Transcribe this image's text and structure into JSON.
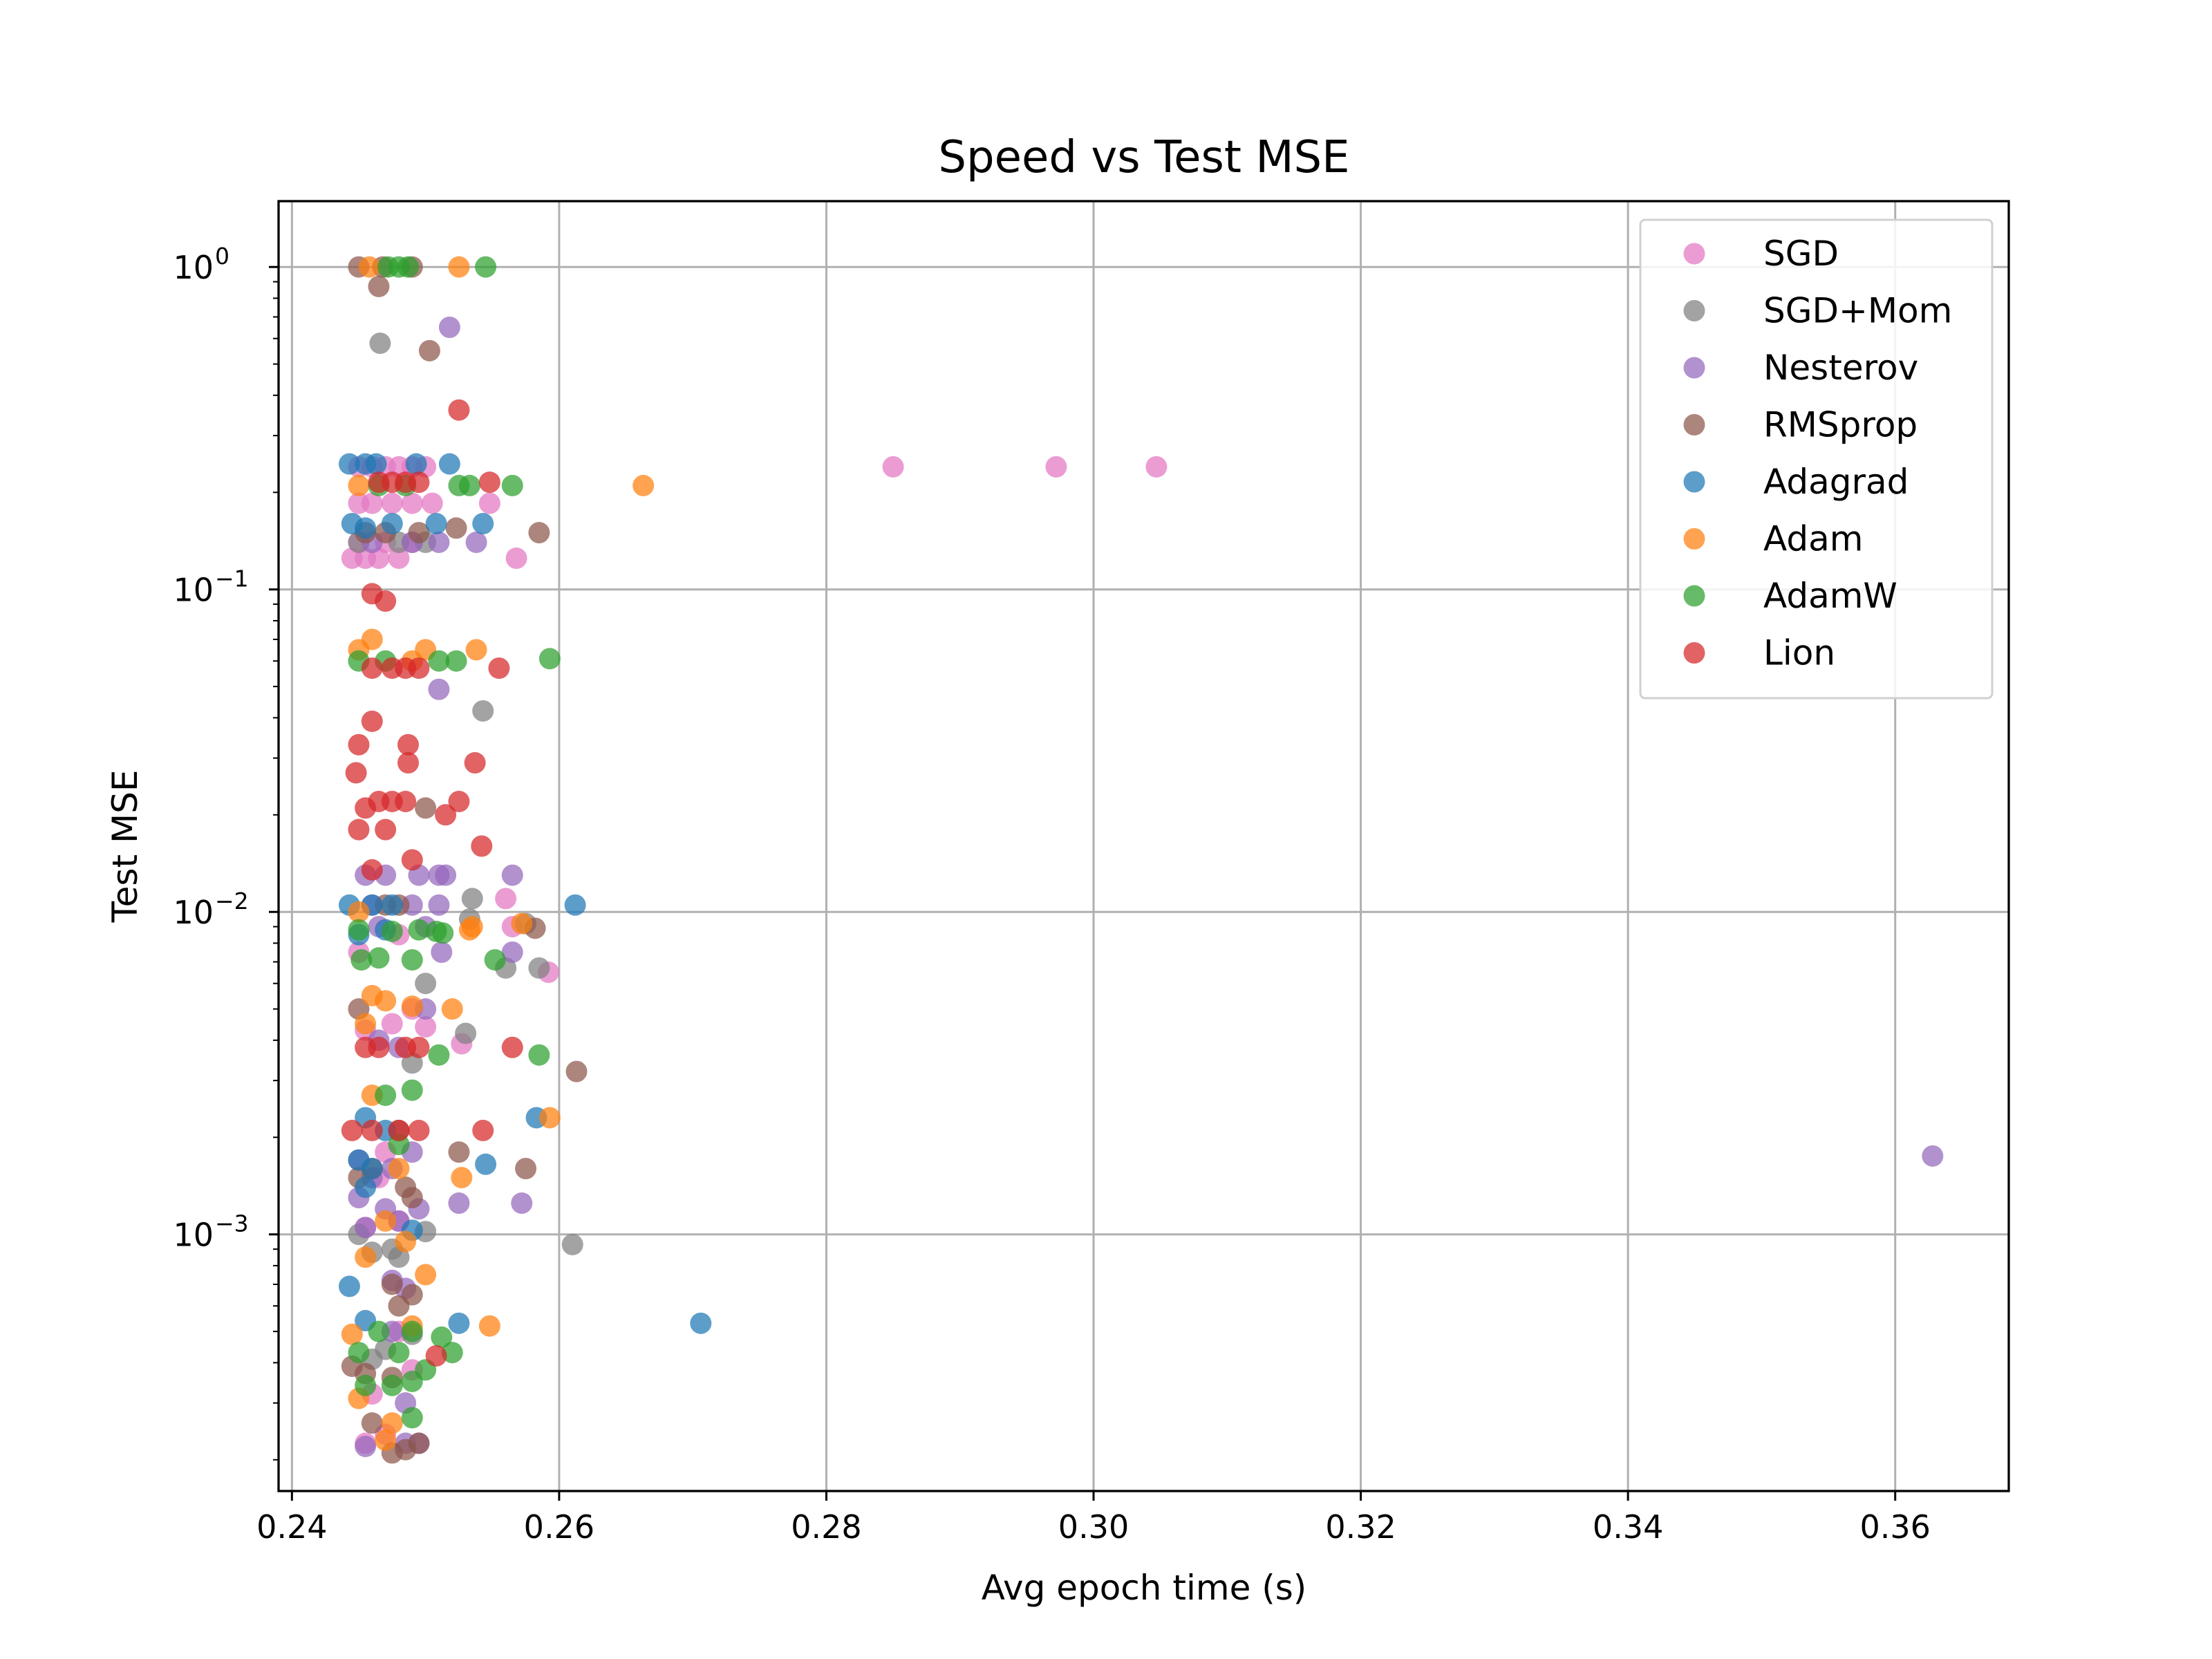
{
  "chart_data": {
    "type": "scatter",
    "title": "Speed vs Test MSE",
    "xlabel": "Avg epoch time (s)",
    "ylabel": "Test MSE",
    "xscale": "linear",
    "yscale": "log",
    "xlim": [
      0.239,
      0.3685
    ],
    "ylim": [
      0.00016,
      1.6
    ],
    "xticks": [
      {
        "value": 0.24,
        "label": "0.24"
      },
      {
        "value": 0.26,
        "label": "0.26"
      },
      {
        "value": 0.28,
        "label": "0.28"
      },
      {
        "value": 0.3,
        "label": "0.30"
      },
      {
        "value": 0.32,
        "label": "0.32"
      },
      {
        "value": 0.34,
        "label": "0.34"
      },
      {
        "value": 0.36,
        "label": "0.36"
      }
    ],
    "yticks": [
      {
        "value": 1,
        "base": "10",
        "exp": "0"
      },
      {
        "value": 0.1,
        "base": "10",
        "exp": "−1"
      },
      {
        "value": 0.01,
        "base": "10",
        "exp": "−2"
      },
      {
        "value": 0.001,
        "base": "10",
        "exp": "−3"
      }
    ],
    "grid": true,
    "legend_position": "top-right",
    "series": [
      {
        "name": "SGD",
        "color": "#e377c2",
        "points": [
          [
            0.245,
            0.24
          ],
          [
            0.246,
            0.24
          ],
          [
            0.247,
            0.24
          ],
          [
            0.248,
            0.24
          ],
          [
            0.249,
            0.24
          ],
          [
            0.25,
            0.24
          ],
          [
            0.245,
            0.185
          ],
          [
            0.246,
            0.185
          ],
          [
            0.2475,
            0.185
          ],
          [
            0.249,
            0.185
          ],
          [
            0.2505,
            0.185
          ],
          [
            0.2548,
            0.185
          ],
          [
            0.2445,
            0.125
          ],
          [
            0.2455,
            0.125
          ],
          [
            0.2465,
            0.125
          ],
          [
            0.248,
            0.125
          ],
          [
            0.2568,
            0.125
          ],
          [
            0.245,
            0.14
          ],
          [
            0.247,
            0.14
          ],
          [
            0.249,
            0.14
          ],
          [
            0.285,
            0.24
          ],
          [
            0.2972,
            0.24
          ],
          [
            0.3047,
            0.24
          ],
          [
            0.256,
            0.011
          ],
          [
            0.2565,
            0.009
          ],
          [
            0.2592,
            0.0065
          ],
          [
            0.245,
            0.0075
          ],
          [
            0.248,
            0.0085
          ],
          [
            0.2475,
            0.0045
          ],
          [
            0.25,
            0.0044
          ],
          [
            0.2527,
            0.0039
          ],
          [
            0.2455,
            0.0043
          ],
          [
            0.249,
            0.005
          ],
          [
            0.247,
            0.0018
          ],
          [
            0.2465,
            0.0015
          ],
          [
            0.248,
            0.0011
          ],
          [
            0.2455,
            0.00105
          ],
          [
            0.248,
            0.0005
          ],
          [
            0.249,
            0.00038
          ],
          [
            0.246,
            0.00032
          ],
          [
            0.2455,
            0.000225
          ],
          [
            0.247,
            0.00024
          ]
        ]
      },
      {
        "name": "SGD+Mom",
        "color": "#7f7f7f",
        "points": [
          [
            0.2466,
            0.58
          ],
          [
            0.245,
            0.14
          ],
          [
            0.248,
            0.14
          ],
          [
            0.25,
            0.14
          ],
          [
            0.2543,
            0.042
          ],
          [
            0.2535,
            0.011
          ],
          [
            0.2533,
            0.0095
          ],
          [
            0.2575,
            0.0092
          ],
          [
            0.2585,
            0.0067
          ],
          [
            0.256,
            0.0067
          ],
          [
            0.25,
            0.006
          ],
          [
            0.253,
            0.0042
          ],
          [
            0.249,
            0.0034
          ],
          [
            0.245,
            0.001
          ],
          [
            0.2475,
            0.0009
          ],
          [
            0.25,
            0.00102
          ],
          [
            0.246,
            0.00088
          ],
          [
            0.248,
            0.00085
          ],
          [
            0.261,
            0.00093
          ],
          [
            0.247,
            0.00044
          ],
          [
            0.249,
            0.00049
          ],
          [
            0.246,
            0.00041
          ]
        ]
      },
      {
        "name": "Nesterov",
        "color": "#9467bd",
        "points": [
          [
            0.2518,
            0.65
          ],
          [
            0.249,
            0.14
          ],
          [
            0.251,
            0.14
          ],
          [
            0.2538,
            0.14
          ],
          [
            0.246,
            0.14
          ],
          [
            0.251,
            0.049
          ],
          [
            0.2455,
            0.013
          ],
          [
            0.247,
            0.013
          ],
          [
            0.2495,
            0.013
          ],
          [
            0.251,
            0.013
          ],
          [
            0.2515,
            0.013
          ],
          [
            0.2565,
            0.013
          ],
          [
            0.246,
            0.0105
          ],
          [
            0.249,
            0.0105
          ],
          [
            0.251,
            0.0105
          ],
          [
            0.2465,
            0.009
          ],
          [
            0.25,
            0.009
          ],
          [
            0.2512,
            0.0075
          ],
          [
            0.2565,
            0.0075
          ],
          [
            0.25,
            0.005
          ],
          [
            0.2465,
            0.004
          ],
          [
            0.248,
            0.0038
          ],
          [
            0.245,
            0.0017
          ],
          [
            0.246,
            0.0015
          ],
          [
            0.2475,
            0.0016
          ],
          [
            0.249,
            0.0018
          ],
          [
            0.245,
            0.0013
          ],
          [
            0.247,
            0.0012
          ],
          [
            0.248,
            0.0011
          ],
          [
            0.2495,
            0.0012
          ],
          [
            0.2525,
            0.00125
          ],
          [
            0.2572,
            0.00125
          ],
          [
            0.2455,
            0.00105
          ],
          [
            0.2475,
            0.00072
          ],
          [
            0.2485,
            0.00068
          ],
          [
            0.2475,
            0.0005
          ],
          [
            0.2485,
            0.0003
          ],
          [
            0.2455,
            0.00022
          ],
          [
            0.2485,
            0.000225
          ],
          [
            0.2495,
            0.000225
          ],
          [
            0.3628,
            0.00175
          ]
        ]
      },
      {
        "name": "RMSprop",
        "color": "#8c564b",
        "points": [
          [
            0.245,
            1.0
          ],
          [
            0.2468,
            1.0
          ],
          [
            0.249,
            1.0
          ],
          [
            0.2465,
            0.87
          ],
          [
            0.2503,
            0.55
          ],
          [
            0.2455,
            0.15
          ],
          [
            0.247,
            0.15
          ],
          [
            0.2495,
            0.15
          ],
          [
            0.2523,
            0.155
          ],
          [
            0.2585,
            0.15
          ],
          [
            0.25,
            0.021
          ],
          [
            0.247,
            0.0105
          ],
          [
            0.248,
            0.0105
          ],
          [
            0.2582,
            0.0089
          ],
          [
            0.245,
            0.005
          ],
          [
            0.2613,
            0.0032
          ],
          [
            0.245,
            0.0015
          ],
          [
            0.2485,
            0.0014
          ],
          [
            0.249,
            0.0013
          ],
          [
            0.2525,
            0.0018
          ],
          [
            0.2575,
            0.0016
          ],
          [
            0.248,
            0.0021
          ],
          [
            0.246,
            0.0016
          ],
          [
            0.2475,
            0.0007
          ],
          [
            0.249,
            0.00065
          ],
          [
            0.248,
            0.0006
          ],
          [
            0.2445,
            0.00039
          ],
          [
            0.2455,
            0.00037
          ],
          [
            0.2475,
            0.00036
          ],
          [
            0.246,
            0.00026
          ],
          [
            0.2475,
            0.00021
          ],
          [
            0.2485,
            0.000215
          ],
          [
            0.2495,
            0.000225
          ]
        ]
      },
      {
        "name": "Adagrad",
        "color": "#1f77b4",
        "points": [
          [
            0.2443,
            0.245
          ],
          [
            0.2455,
            0.245
          ],
          [
            0.2463,
            0.245
          ],
          [
            0.2493,
            0.245
          ],
          [
            0.2518,
            0.245
          ],
          [
            0.2445,
            0.16
          ],
          [
            0.2455,
            0.155
          ],
          [
            0.2475,
            0.16
          ],
          [
            0.2508,
            0.16
          ],
          [
            0.2543,
            0.16
          ],
          [
            0.2443,
            0.0105
          ],
          [
            0.246,
            0.0105
          ],
          [
            0.2475,
            0.0105
          ],
          [
            0.2612,
            0.0105
          ],
          [
            0.245,
            0.0085
          ],
          [
            0.247,
            0.0088
          ],
          [
            0.2455,
            0.0023
          ],
          [
            0.247,
            0.0021
          ],
          [
            0.2583,
            0.0023
          ],
          [
            0.245,
            0.0017
          ],
          [
            0.246,
            0.0016
          ],
          [
            0.2545,
            0.00165
          ],
          [
            0.2455,
            0.0014
          ],
          [
            0.249,
            0.00103
          ],
          [
            0.2443,
            0.00069
          ],
          [
            0.2455,
            0.00054
          ],
          [
            0.2525,
            0.00053
          ],
          [
            0.2706,
            0.00053
          ]
        ]
      },
      {
        "name": "Adam",
        "color": "#ff7f0e",
        "points": [
          [
            0.2458,
            1.0
          ],
          [
            0.2525,
            1.0
          ],
          [
            0.245,
            0.21
          ],
          [
            0.2663,
            0.21
          ],
          [
            0.246,
            0.07
          ],
          [
            0.245,
            0.065
          ],
          [
            0.25,
            0.065
          ],
          [
            0.2538,
            0.065
          ],
          [
            0.249,
            0.06
          ],
          [
            0.245,
            0.01
          ],
          [
            0.2535,
            0.009
          ],
          [
            0.2533,
            0.0088
          ],
          [
            0.2572,
            0.0092
          ],
          [
            0.246,
            0.0055
          ],
          [
            0.247,
            0.0053
          ],
          [
            0.249,
            0.0051
          ],
          [
            0.252,
            0.005
          ],
          [
            0.2455,
            0.0045
          ],
          [
            0.246,
            0.0027
          ],
          [
            0.2593,
            0.0023
          ],
          [
            0.248,
            0.0016
          ],
          [
            0.2527,
            0.0015
          ],
          [
            0.247,
            0.0011
          ],
          [
            0.2485,
            0.00095
          ],
          [
            0.2455,
            0.00085
          ],
          [
            0.25,
            0.00075
          ],
          [
            0.249,
            0.00052
          ],
          [
            0.2548,
            0.00052
          ],
          [
            0.2445,
            0.00049
          ],
          [
            0.245,
            0.00031
          ],
          [
            0.2475,
            0.00026
          ],
          [
            0.247,
            0.00023
          ]
        ]
      },
      {
        "name": "AdamW",
        "color": "#2ca02c",
        "points": [
          [
            0.2472,
            1.0
          ],
          [
            0.248,
            1.0
          ],
          [
            0.2487,
            1.0
          ],
          [
            0.2545,
            1.0
          ],
          [
            0.2465,
            0.21
          ],
          [
            0.2485,
            0.21
          ],
          [
            0.2525,
            0.21
          ],
          [
            0.2533,
            0.21
          ],
          [
            0.2565,
            0.21
          ],
          [
            0.245,
            0.06
          ],
          [
            0.247,
            0.06
          ],
          [
            0.251,
            0.06
          ],
          [
            0.2523,
            0.06
          ],
          [
            0.2593,
            0.061
          ],
          [
            0.245,
            0.0088
          ],
          [
            0.2475,
            0.0087
          ],
          [
            0.2495,
            0.0088
          ],
          [
            0.2508,
            0.0087
          ],
          [
            0.2513,
            0.0086
          ],
          [
            0.2452,
            0.0071
          ],
          [
            0.2465,
            0.0072
          ],
          [
            0.249,
            0.0071
          ],
          [
            0.2552,
            0.0071
          ],
          [
            0.251,
            0.0036
          ],
          [
            0.2585,
            0.0036
          ],
          [
            0.247,
            0.0027
          ],
          [
            0.249,
            0.0028
          ],
          [
            0.248,
            0.0019
          ],
          [
            0.2465,
            0.0005
          ],
          [
            0.249,
            0.0005
          ],
          [
            0.2512,
            0.00048
          ],
          [
            0.245,
            0.00043
          ],
          [
            0.248,
            0.00043
          ],
          [
            0.252,
            0.00043
          ],
          [
            0.2455,
            0.00034
          ],
          [
            0.2475,
            0.00034
          ],
          [
            0.249,
            0.00035
          ],
          [
            0.25,
            0.00038
          ],
          [
            0.249,
            0.00027
          ]
        ]
      },
      {
        "name": "Lion",
        "color": "#d62728",
        "points": [
          [
            0.2525,
            0.36
          ],
          [
            0.2465,
            0.215
          ],
          [
            0.2475,
            0.215
          ],
          [
            0.2485,
            0.215
          ],
          [
            0.2495,
            0.215
          ],
          [
            0.2548,
            0.215
          ],
          [
            0.246,
            0.097
          ],
          [
            0.247,
            0.092
          ],
          [
            0.246,
            0.057
          ],
          [
            0.2475,
            0.057
          ],
          [
            0.2485,
            0.057
          ],
          [
            0.2495,
            0.057
          ],
          [
            0.2555,
            0.057
          ],
          [
            0.246,
            0.039
          ],
          [
            0.245,
            0.033
          ],
          [
            0.2487,
            0.033
          ],
          [
            0.2537,
            0.029
          ],
          [
            0.2487,
            0.029
          ],
          [
            0.2448,
            0.027
          ],
          [
            0.2455,
            0.021
          ],
          [
            0.2465,
            0.022
          ],
          [
            0.2475,
            0.022
          ],
          [
            0.2485,
            0.022
          ],
          [
            0.2525,
            0.022
          ],
          [
            0.2515,
            0.02
          ],
          [
            0.245,
            0.018
          ],
          [
            0.247,
            0.018
          ],
          [
            0.2542,
            0.016
          ],
          [
            0.249,
            0.0145
          ],
          [
            0.246,
            0.0135
          ],
          [
            0.2455,
            0.0038
          ],
          [
            0.2465,
            0.0038
          ],
          [
            0.2485,
            0.0038
          ],
          [
            0.2495,
            0.0038
          ],
          [
            0.2565,
            0.0038
          ],
          [
            0.2445,
            0.0021
          ],
          [
            0.246,
            0.0021
          ],
          [
            0.248,
            0.0021
          ],
          [
            0.2495,
            0.0021
          ],
          [
            0.2543,
            0.0021
          ],
          [
            0.2508,
            0.00042
          ]
        ]
      }
    ]
  }
}
